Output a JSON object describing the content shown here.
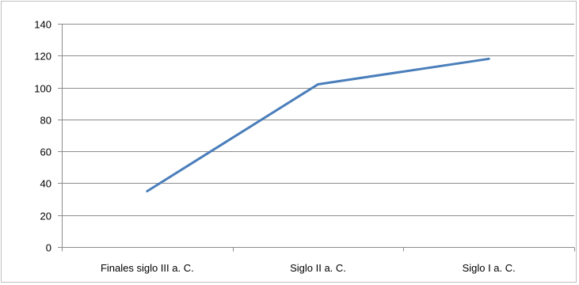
{
  "chart_data": {
    "type": "line",
    "title": "",
    "xlabel": "",
    "ylabel": "",
    "categories": [
      "Finales siglo III a. C.",
      "Siglo II a. C.",
      "Siglo I a. C."
    ],
    "series": [
      {
        "values": [
          35,
          102,
          118
        ]
      }
    ],
    "ylim": [
      0,
      140
    ],
    "yticks": [
      0,
      20,
      40,
      60,
      80,
      100,
      120,
      140
    ],
    "grid": "horizontal",
    "legend": "none",
    "colors": {
      "line": "#4a7ebb",
      "grid": "#8c8c8c",
      "axis": "#8c8c8c"
    }
  }
}
